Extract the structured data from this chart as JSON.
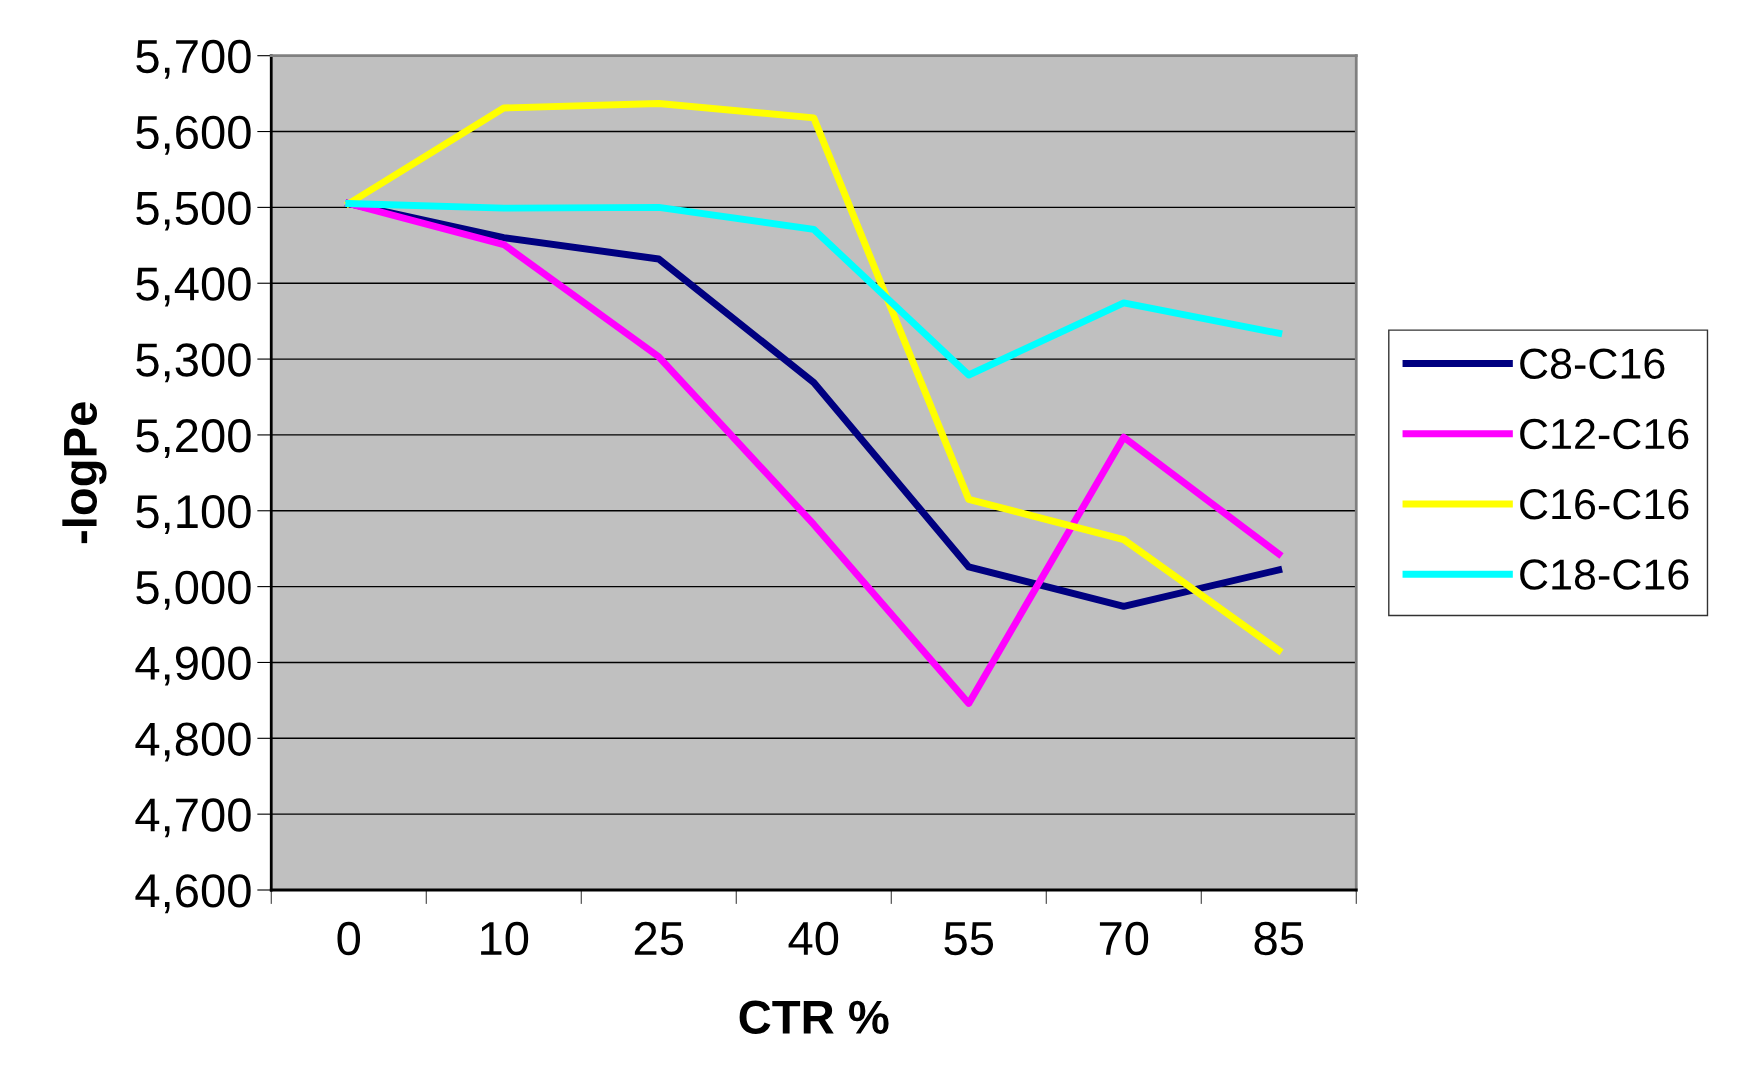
{
  "chart_data": {
    "type": "line",
    "xlabel": "CTR %",
    "ylabel": "-logPe",
    "categories": [
      "0",
      "10",
      "25",
      "40",
      "55",
      "70",
      "85"
    ],
    "series": [
      {
        "name": "C8-C16",
        "color": "#000080",
        "values": [
          5505,
          5460,
          5432,
          5269,
          5026,
          4974,
          5022
        ]
      },
      {
        "name": "C12-C16",
        "color": "#ff00ff",
        "values": [
          5505,
          5451,
          5303,
          5082,
          4846,
          5197,
          5043
        ]
      },
      {
        "name": "C16-C16",
        "color": "#ffff00",
        "values": [
          5505,
          5631,
          5637,
          5618,
          5115,
          5062,
          4916
        ]
      },
      {
        "name": "C18-C16",
        "color": "#00ffff",
        "values": [
          5505,
          5499,
          5500,
          5471,
          5279,
          5374,
          5334
        ]
      }
    ],
    "ylim": [
      4600,
      5700
    ],
    "yticks": [
      {
        "value": 4600,
        "label": "4,600"
      },
      {
        "value": 4700,
        "label": "4,700"
      },
      {
        "value": 4800,
        "label": "4,800"
      },
      {
        "value": 4900,
        "label": "4,900"
      },
      {
        "value": 5000,
        "label": "5,000"
      },
      {
        "value": 5100,
        "label": "5,100"
      },
      {
        "value": 5200,
        "label": "5,200"
      },
      {
        "value": 5300,
        "label": "5,300"
      },
      {
        "value": 5400,
        "label": "5,400"
      },
      {
        "value": 5500,
        "label": "5,500"
      },
      {
        "value": 5600,
        "label": "5,600"
      },
      {
        "value": 5700,
        "label": "5,700"
      }
    ],
    "grid": "y",
    "legend": "right",
    "marker": "none",
    "line_style": "solid"
  }
}
